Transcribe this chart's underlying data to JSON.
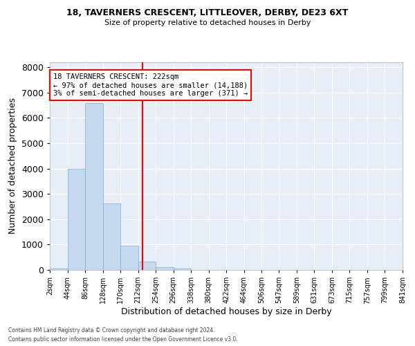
{
  "title_line1": "18, TAVERNERS CRESCENT, LITTLEOVER, DERBY, DE23 6XT",
  "title_line2": "Size of property relative to detached houses in Derby",
  "xlabel": "Distribution of detached houses by size in Derby",
  "ylabel": "Number of detached properties",
  "bar_color": "#c5d9f0",
  "bar_edge_color": "#7aadd4",
  "background_color": "#e8eef8",
  "grid_color": "#ffffff",
  "annotation_line_color": "red",
  "annotation_property_sqm": 222,
  "annotation_text_line1": "18 TAVERNERS CRESCENT: 222sqm",
  "annotation_text_line2": "← 97% of detached houses are smaller (14,188)",
  "annotation_text_line3": "3% of semi-detached houses are larger (371) →",
  "footer_line1": "Contains HM Land Registry data © Crown copyright and database right 2024.",
  "footer_line2": "Contains public sector information licensed under the Open Government Licence v3.0.",
  "bin_edges": [
    2,
    44,
    86,
    128,
    170,
    212,
    254,
    296,
    338,
    380,
    422,
    464,
    506,
    547,
    589,
    631,
    673,
    715,
    757,
    799,
    841
  ],
  "bin_labels": [
    "2sqm",
    "44sqm",
    "86sqm",
    "128sqm",
    "170sqm",
    "212sqm",
    "254sqm",
    "296sqm",
    "338sqm",
    "380sqm",
    "422sqm",
    "464sqm",
    "506sqm",
    "547sqm",
    "589sqm",
    "631sqm",
    "673sqm",
    "715sqm",
    "757sqm",
    "799sqm",
    "841sqm"
  ],
  "counts": [
    50,
    4000,
    6600,
    2620,
    960,
    330,
    110,
    60,
    0,
    0,
    0,
    0,
    0,
    0,
    0,
    0,
    0,
    0,
    0,
    0
  ],
  "ylim": [
    0,
    8200
  ],
  "yticks": [
    0,
    1000,
    2000,
    3000,
    4000,
    5000,
    6000,
    7000,
    8000
  ]
}
